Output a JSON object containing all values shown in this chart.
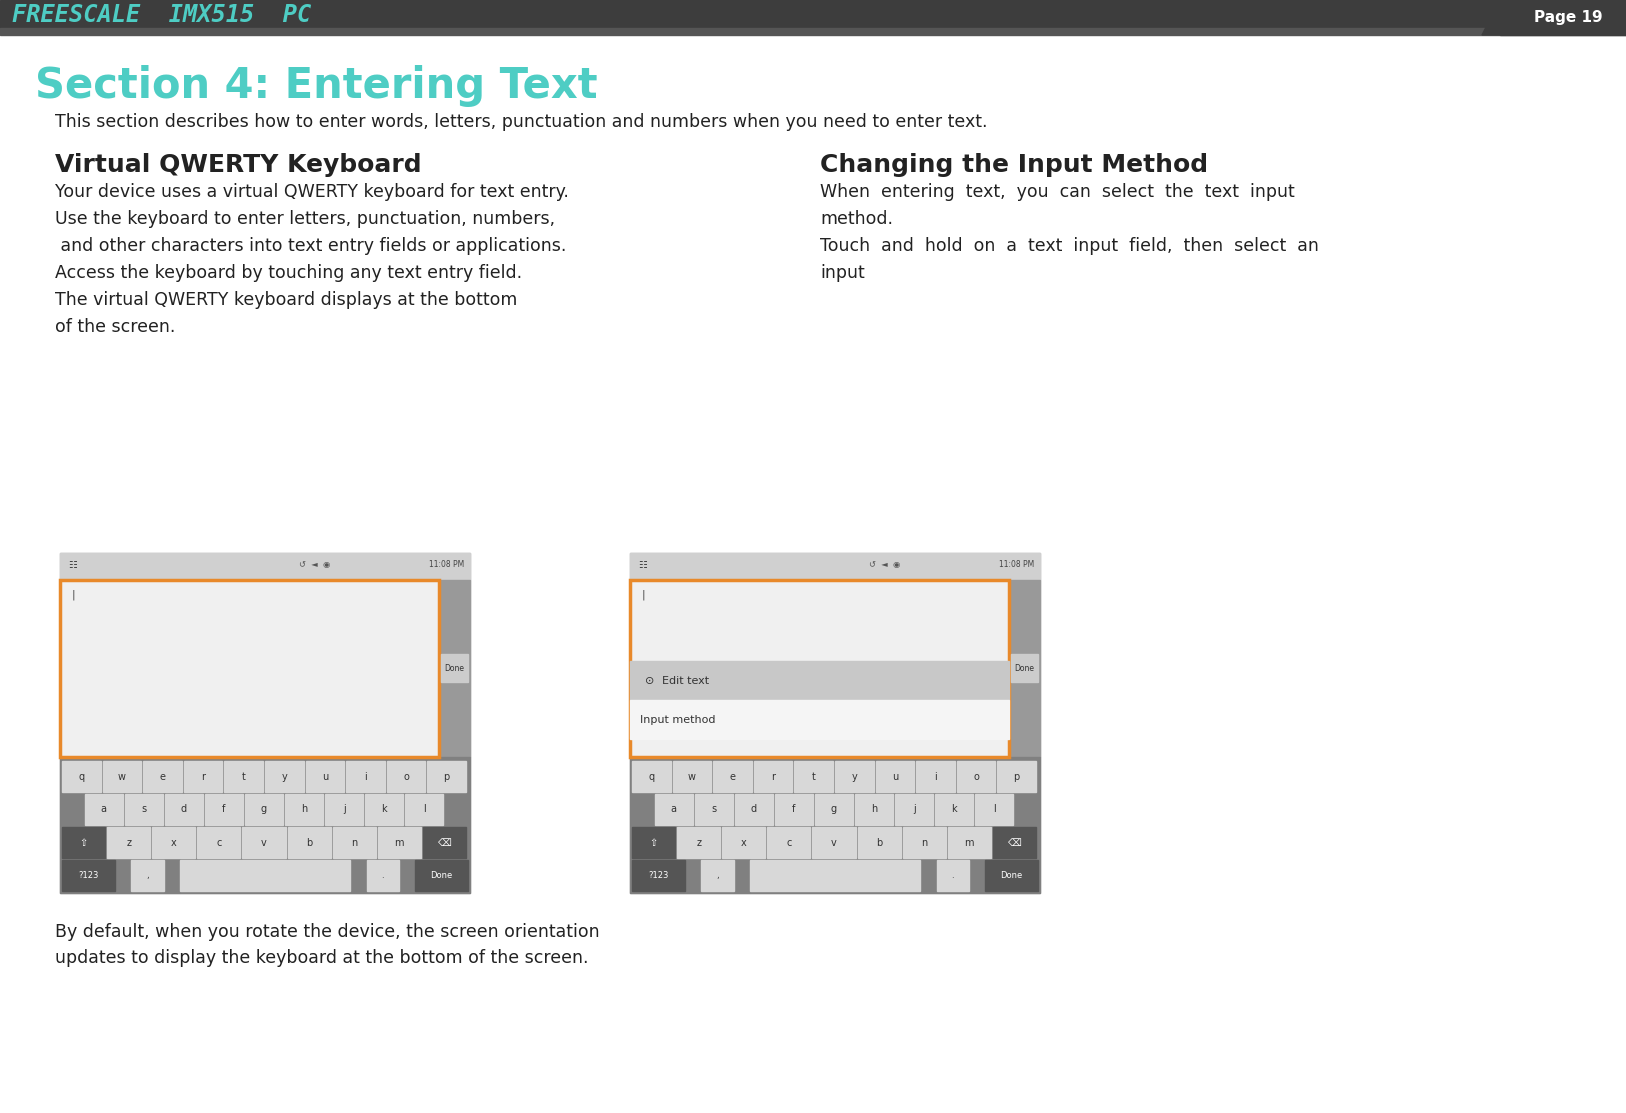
{
  "bg_color": "#ffffff",
  "header_bar_color": "#3d3d3d",
  "header_text": "FREESCALE  IMX515  PC",
  "header_text_color": "#4ecdc4",
  "page_label": "Page 19",
  "page_label_color": "#ffffff",
  "section_title": "Section 4: Entering Text",
  "section_title_color": "#4ecdc4",
  "intro_text": "This section describes how to enter words, letters, punctuation and numbers when you need to enter text.",
  "col1_heading": "Virtual QWERTY Keyboard",
  "col1_body_lines": [
    "Your device uses a virtual QWERTY keyboard for text entry.",
    "Use the keyboard to enter letters, punctuation, numbers,",
    " and other characters into text entry fields or applications.",
    "Access the keyboard by touching any text entry field.",
    "The virtual QWERTY keyboard displays at the bottom",
    "of the screen."
  ],
  "col2_heading": "Changing the Input Method",
  "col2_body_lines": [
    "When  entering  text,  you  can  select  the  text  input",
    "method.",
    "Touch  and  hold  on  a  text  input  field,  then  select  an",
    "input"
  ],
  "footer_line1": "By default, when you rotate the device, the screen orientation",
  "footer_line2": "updates to display the keyboard at the bottom of the screen.",
  "teal": "#4ecdc4",
  "dark": "#222222",
  "orange": "#e8892a",
  "gray_dark": "#888888",
  "gray_mid": "#aaaaaa",
  "gray_light": "#cccccc",
  "key_light": "#d8d8d8",
  "key_dark": "#999999",
  "screen_white": "#f2f2f2",
  "status_bg": "#d0d0d0"
}
